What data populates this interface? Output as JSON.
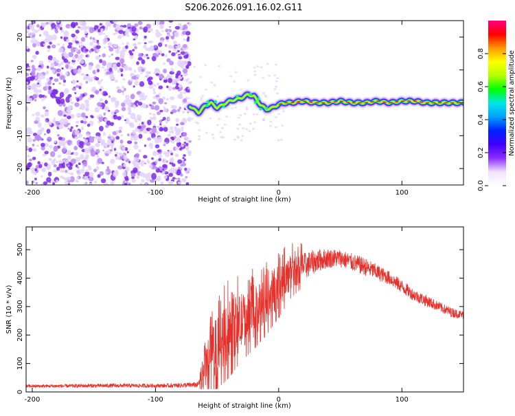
{
  "title": "S206.2026.091.16.02.G11",
  "colors": {
    "snr_line": "#e8302a",
    "speckle_light": "#e3d2fb",
    "speckle_mid": "#b98af3",
    "speckle_dark": "#7a2ae6",
    "background": "#ffffff"
  },
  "chart_data": [
    {
      "type": "heatmap",
      "name": "spectrogram",
      "xlabel": "Height of straight line (km)",
      "ylabel": "Frequency (Hz)",
      "xlim": [
        -205,
        150
      ],
      "ylim": [
        -25,
        25
      ],
      "xticks": [
        -200,
        -100,
        0,
        100
      ],
      "xtick_labels": [
        "-200",
        "-100",
        "0",
        "100"
      ],
      "yticks": [
        -20,
        -10,
        0,
        10,
        20
      ],
      "ytick_labels": [
        "-20",
        "-10",
        "0",
        "10",
        "20"
      ],
      "noise_region_x": [
        -205,
        -72
      ],
      "ridge": {
        "description_points_x": [
          -72,
          -65,
          -60,
          -55,
          -50,
          -45,
          -40,
          -35,
          -30,
          -25,
          -20,
          -15,
          -10,
          -5,
          0,
          5,
          10,
          20,
          30,
          40,
          50,
          60,
          70,
          80,
          90,
          100,
          110,
          120,
          130,
          140,
          150
        ],
        "freq_hz": [
          -1,
          -3,
          -1,
          0,
          -1.5,
          -0.5,
          0.5,
          1,
          1.5,
          2.5,
          2,
          -0.5,
          -2,
          -1.5,
          -0.5,
          0,
          0,
          0.5,
          0,
          0,
          0.5,
          0,
          0,
          0.5,
          0,
          0.5,
          0.5,
          0,
          0,
          0,
          0
        ]
      },
      "colorbar": {
        "label": "Normalized spectral amplitude",
        "range": [
          0,
          1
        ],
        "ticks": [
          0.0,
          0.2,
          0.4,
          0.6,
          0.8
        ],
        "tick_labels": [
          "0.0",
          "0.2",
          "0.4",
          "0.6",
          "0.8"
        ],
        "stops": [
          "#ffffff",
          "#f0e2ff",
          "#8b2cff",
          "#3f00ff",
          "#0020ff",
          "#00a0ff",
          "#00e6e6",
          "#00ff00",
          "#b4ff00",
          "#ffff00",
          "#ff9900",
          "#ff0000",
          "#ff0080"
        ]
      }
    },
    {
      "type": "line",
      "name": "snr",
      "xlabel": "Height of straight line (km)",
      "ylabel": "SNR (10 * v/v)",
      "xlim": [
        -205,
        150
      ],
      "ylim": [
        0,
        580
      ],
      "xticks": [
        -200,
        -100,
        0,
        100
      ],
      "xtick_labels": [
        "-200",
        "-100",
        "0",
        "100"
      ],
      "yticks": [
        0,
        100,
        200,
        300,
        400,
        500
      ],
      "ytick_labels": [
        "0",
        "100",
        "200",
        "300",
        "400",
        "500"
      ],
      "envelope": {
        "x": [
          -205,
          -140,
          -90,
          -65,
          -60,
          -50,
          -40,
          -30,
          -20,
          -10,
          0,
          10,
          20,
          30,
          40,
          50,
          60,
          70,
          80,
          90,
          100,
          110,
          120,
          130,
          140,
          150
        ],
        "base": [
          20,
          22,
          22,
          25,
          90,
          160,
          210,
          250,
          280,
          320,
          370,
          420,
          440,
          460,
          470,
          470,
          455,
          440,
          420,
          400,
          370,
          340,
          320,
          300,
          280,
          270
        ],
        "spread": [
          8,
          10,
          10,
          15,
          120,
          150,
          160,
          140,
          130,
          120,
          110,
          90,
          70,
          60,
          50,
          45,
          45,
          45,
          40,
          35,
          35,
          30,
          30,
          25,
          25,
          20
        ]
      }
    }
  ]
}
